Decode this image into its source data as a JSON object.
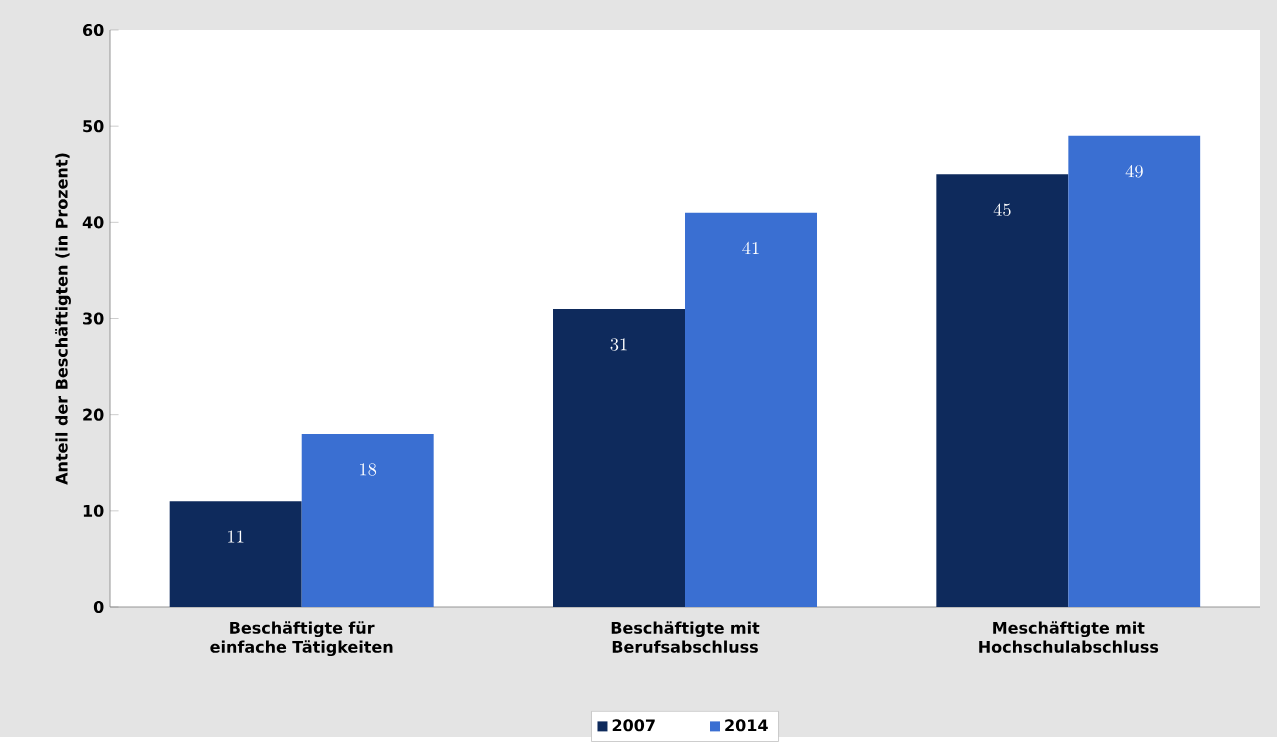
{
  "chart_data": {
    "type": "bar",
    "ylabel": "Anteil der Beschäftigten (in Prozent)",
    "categories": [
      "Beschäftigte für einfache Tätigkeiten",
      "Beschäftigte mit Berufsabschluss",
      "Meschäftigte mit Hochschulabschluss"
    ],
    "series": [
      {
        "name": "2007",
        "color": "#0e2a5c",
        "values": [
          11,
          31,
          45
        ]
      },
      {
        "name": "2014",
        "color": "#3a6fd2",
        "values": [
          18,
          41,
          49
        ]
      }
    ],
    "ylim": [
      0,
      60
    ],
    "yticks": [
      0,
      10,
      20,
      30,
      40,
      50,
      60
    ],
    "data_labels": true,
    "legend": "bottom"
  }
}
